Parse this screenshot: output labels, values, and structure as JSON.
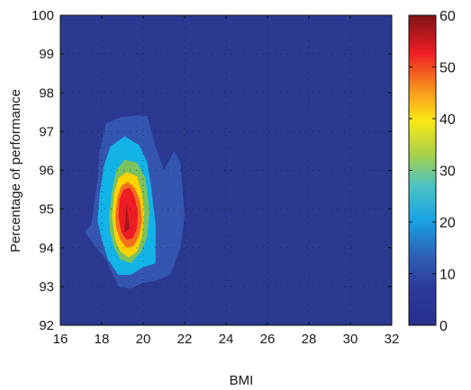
{
  "chart_data": {
    "type": "heatmap",
    "subtype": "filled-contour",
    "title": "",
    "xlabel": "BMI",
    "ylabel": "Percentage of performance",
    "xlim": [
      16,
      32
    ],
    "ylim": [
      92,
      100
    ],
    "xticks": [
      "16",
      "18",
      "20",
      "22",
      "24",
      "26",
      "28",
      "30",
      "32"
    ],
    "yticks": [
      "92",
      "93",
      "94",
      "95",
      "96",
      "97",
      "98",
      "99",
      "100"
    ],
    "grid": "dotted",
    "colormap": "jet",
    "colorbar": {
      "range": [
        0,
        60
      ],
      "ticks": [
        "0",
        "10",
        "20",
        "30",
        "40",
        "50",
        "60"
      ]
    },
    "background_level": 0,
    "levels": [
      {
        "level": 5,
        "color": "#3456b0",
        "outline": [
          [
            17.2,
            94.4
          ],
          [
            17.5,
            94.6
          ],
          [
            17.8,
            95.8
          ],
          [
            17.9,
            96.5
          ],
          [
            18.2,
            97.2
          ],
          [
            18.8,
            97.35
          ],
          [
            19.6,
            97.42
          ],
          [
            20.2,
            97.4
          ],
          [
            20.4,
            97.0
          ],
          [
            20.6,
            96.6
          ],
          [
            21.0,
            96.0
          ],
          [
            21.5,
            96.5
          ],
          [
            21.8,
            96.2
          ],
          [
            22.0,
            94.8
          ],
          [
            21.8,
            94.0
          ],
          [
            21.3,
            93.3
          ],
          [
            20.6,
            93.15
          ],
          [
            20.0,
            93.1
          ],
          [
            19.4,
            92.95
          ],
          [
            18.8,
            93.0
          ],
          [
            18.2,
            93.7
          ],
          [
            17.6,
            94.1
          ]
        ]
      },
      {
        "level": 15,
        "color": "#13b3e8",
        "outline": [
          [
            17.8,
            94.7
          ],
          [
            17.9,
            95.4
          ],
          [
            18.1,
            96.1
          ],
          [
            18.4,
            96.6
          ],
          [
            19.1,
            96.88
          ],
          [
            19.8,
            96.65
          ],
          [
            20.2,
            96.2
          ],
          [
            20.4,
            95.5
          ],
          [
            20.6,
            94.6
          ],
          [
            20.6,
            93.6
          ],
          [
            20.0,
            93.5
          ],
          [
            19.4,
            93.3
          ],
          [
            18.8,
            93.3
          ],
          [
            18.3,
            93.7
          ],
          [
            18.0,
            94.2
          ]
        ]
      },
      {
        "level": 25,
        "color": "#7cc25e",
        "outline": [
          [
            18.35,
            94.8
          ],
          [
            18.5,
            95.5
          ],
          [
            18.7,
            96.0
          ],
          [
            19.1,
            96.27
          ],
          [
            19.7,
            96.2
          ],
          [
            20.1,
            95.8
          ],
          [
            20.3,
            95.0
          ],
          [
            20.2,
            94.3
          ],
          [
            19.9,
            93.9
          ],
          [
            19.4,
            93.6
          ],
          [
            18.9,
            93.7
          ],
          [
            18.6,
            94.0
          ],
          [
            18.4,
            94.4
          ]
        ]
      },
      {
        "level": 35,
        "color": "#fed203",
        "outline": [
          [
            18.5,
            94.8
          ],
          [
            18.6,
            95.4
          ],
          [
            18.8,
            95.8
          ],
          [
            19.2,
            95.95
          ],
          [
            19.7,
            95.85
          ],
          [
            19.95,
            95.4
          ],
          [
            20.05,
            94.9
          ],
          [
            19.95,
            94.3
          ],
          [
            19.7,
            93.9
          ],
          [
            19.3,
            93.75
          ],
          [
            18.9,
            93.9
          ],
          [
            18.65,
            94.2
          ]
        ]
      },
      {
        "level": 45,
        "color": "#f36f1c",
        "outline": [
          [
            18.65,
            94.8
          ],
          [
            18.75,
            95.3
          ],
          [
            18.95,
            95.6
          ],
          [
            19.25,
            95.7
          ],
          [
            19.6,
            95.55
          ],
          [
            19.85,
            95.2
          ],
          [
            19.95,
            94.7
          ],
          [
            19.8,
            94.3
          ],
          [
            19.55,
            94.05
          ],
          [
            19.2,
            94.0
          ],
          [
            18.9,
            94.2
          ],
          [
            18.7,
            94.5
          ]
        ]
      },
      {
        "level": 52,
        "color": "#ee1c25",
        "outline": [
          [
            18.8,
            94.8
          ],
          [
            18.85,
            95.25
          ],
          [
            19.05,
            95.5
          ],
          [
            19.35,
            95.55
          ],
          [
            19.6,
            95.3
          ],
          [
            19.75,
            94.9
          ],
          [
            19.7,
            94.5
          ],
          [
            19.5,
            94.25
          ],
          [
            19.2,
            94.2
          ],
          [
            18.95,
            94.4
          ]
        ]
      },
      {
        "level": 58,
        "color": "#9e1b1f",
        "outline": [
          [
            19.1,
            94.4
          ],
          [
            19.15,
            94.8
          ],
          [
            19.2,
            95.15
          ],
          [
            19.28,
            94.8
          ],
          [
            19.35,
            94.5
          ]
        ]
      }
    ]
  }
}
